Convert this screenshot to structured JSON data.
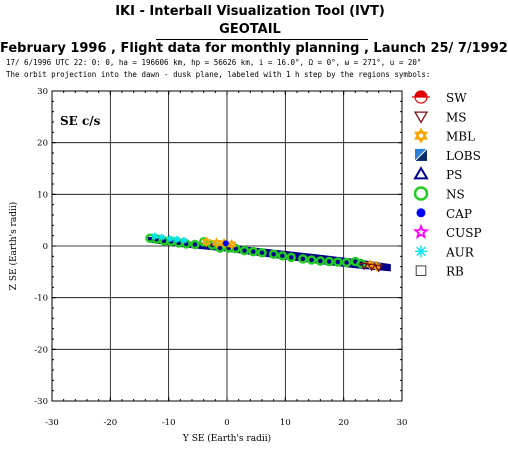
{
  "header": {
    "title": "IKI - Interball Visualization Tool (IVT)",
    "spacecraft": "GEOTAIL",
    "subtitle": "February 1996 ,  Flight data for monthly planning ,   Launch 25/ 7/1992",
    "orbit_info": "17/ 6/1996 UTC 22: 0: 0, ha = 196606 km, hp = 56626 km, i = 16.0°, Ω =  0°, ω = 271°, u = 20°",
    "caption": "The orbit projection into the dawn - dusk plane, labeled with 1 h step by the regions symbols:"
  },
  "chart_data": {
    "type": "scatter",
    "panel_label": "SE c/s",
    "xlabel": "Y SE (Earth's radii)",
    "ylabel": "Z SE (Earth's radii)",
    "xlim": [
      -30,
      30
    ],
    "ylim": [
      -30,
      30
    ],
    "x_ticks": [
      -30,
      -20,
      -10,
      0,
      10,
      20,
      30
    ],
    "y_ticks": [
      -30,
      -20,
      -10,
      0,
      10,
      20,
      30
    ],
    "grid": true,
    "legend_position": "right",
    "legend": [
      {
        "label": "SW",
        "symbol": "sun-half",
        "color": "#e00000"
      },
      {
        "label": "MS",
        "symbol": "triangle-down",
        "color": "#7a1010"
      },
      {
        "label": "MBL",
        "symbol": "star-of-david",
        "color": "#f7a600"
      },
      {
        "label": "LOBS",
        "symbol": "square-diagonal",
        "color": "#2a7fd4"
      },
      {
        "label": "PS",
        "symbol": "triangle-up",
        "color": "#00008b"
      },
      {
        "label": "NS",
        "symbol": "circle-open",
        "color": "#22cc22"
      },
      {
        "label": "CAP",
        "symbol": "circle-filled",
        "color": "#0000ff"
      },
      {
        "label": "CUSP",
        "symbol": "star",
        "color": "#ff00ff"
      },
      {
        "label": "AUR",
        "symbol": "asterisk",
        "color": "#00e5ee"
      },
      {
        "label": "RB",
        "symbol": "square-open",
        "color": "#444444"
      }
    ],
    "orbit_band": {
      "region": "PS",
      "upper_edge": {
        "x": [
          -13.5,
          -8,
          0,
          8,
          16,
          22,
          28
        ],
        "y": [
          1.7,
          0.9,
          0.2,
          -0.8,
          -1.8,
          -2.6,
          -3.6
        ]
      },
      "lower_edge": {
        "x": [
          -13.5,
          -8,
          0,
          8,
          16,
          22,
          28
        ],
        "y": [
          0.8,
          -0.1,
          -1.0,
          -2.2,
          -3.4,
          -4.2,
          -4.8
        ]
      }
    },
    "series": [
      {
        "region": "NS",
        "x": [
          -13.2,
          -12.1,
          -10.8,
          -9.6,
          -8.3,
          -7.0,
          -5.5,
          -4.0,
          -2.5,
          -1.2,
          0.3,
          1.5,
          3.0,
          4.5,
          6.0,
          8.0,
          9.5,
          11.0,
          13.0,
          14.5,
          16.0,
          17.5,
          19.0,
          20.5,
          22.0,
          23.0
        ],
        "y": [
          1.5,
          1.3,
          1.0,
          0.9,
          0.6,
          0.4,
          0.3,
          0.8,
          0.2,
          -0.4,
          -0.4,
          -0.5,
          -0.9,
          -1.1,
          -1.3,
          -1.6,
          -1.9,
          -2.2,
          -2.5,
          -2.7,
          -2.9,
          -3.0,
          -3.1,
          -3.2,
          -3.0,
          -3.4
        ]
      },
      {
        "region": "AUR",
        "x": [
          -12.4,
          -11.2,
          -9.8,
          -8.6,
          -7.4
        ],
        "y": [
          1.9,
          1.7,
          1.4,
          1.3,
          1.1
        ]
      },
      {
        "region": "MBL",
        "x": [
          -3.5,
          -1.8,
          -0.5,
          0.8,
          24.5,
          25.6
        ],
        "y": [
          0.8,
          0.6,
          0.5,
          0.3,
          -3.6,
          -3.9
        ]
      },
      {
        "region": "CAP",
        "x": [
          -0.2
        ],
        "y": [
          0.5
        ]
      },
      {
        "region": "MS",
        "x": [
          23.5,
          24.8,
          26.0
        ],
        "y": [
          -3.8,
          -4.0,
          -4.2
        ]
      }
    ]
  }
}
